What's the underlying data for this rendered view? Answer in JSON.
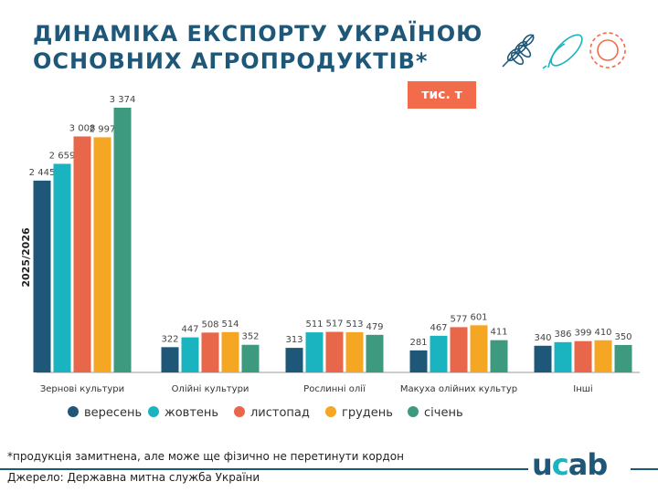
{
  "title_lines": [
    "ДИНАМІКА ЕКСПОРТУ УКРАЇНОЮ",
    "ОСНОВНИХ АГРОПРОДУКТІВ*"
  ],
  "unit_badge": "тис. т",
  "icons": [
    "wheat-icon",
    "corn-icon",
    "sunflower-icon"
  ],
  "footnote": "*продукція замитнена, але може ще фізично не перетинути кордон",
  "source": "Джерело: Державна митна служба України",
  "logo": "ucab",
  "chart_data": {
    "type": "bar",
    "ylabel": "2025/2026",
    "categories": [
      "Зернові культури",
      "Олійні культури",
      "Рослинні олії",
      "Макуха олійних культур",
      "Інші"
    ],
    "series": [
      {
        "name": "вересень",
        "color": "#1f5778",
        "values": [
          2445,
          322,
          313,
          281,
          340
        ],
        "labels": [
          "2 445",
          "322",
          "313",
          "281",
          "340"
        ]
      },
      {
        "name": "жовтень",
        "color": "#1ab3c0",
        "values": [
          2659,
          447,
          511,
          467,
          386
        ],
        "labels": [
          "2 659",
          "447",
          "511",
          "467",
          "386"
        ]
      },
      {
        "name": "листопад",
        "color": "#e8664a",
        "values": [
          3008,
          508,
          517,
          577,
          399
        ],
        "labels": [
          "3 008",
          "508",
          "517",
          "577",
          "399"
        ]
      },
      {
        "name": "грудень",
        "color": "#f5a623",
        "values": [
          2997,
          514,
          513,
          601,
          410
        ],
        "labels": [
          "2 997",
          "514",
          "513",
          "601",
          "410"
        ]
      },
      {
        "name": "січень",
        "color": "#3d9a7e",
        "values": [
          3374,
          352,
          479,
          411,
          350
        ],
        "labels": [
          "3 374",
          "352",
          "479",
          "411",
          "350"
        ]
      }
    ],
    "legend_position": "bottom",
    "grid": false
  }
}
